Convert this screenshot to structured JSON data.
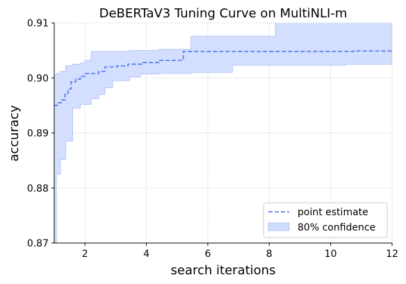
{
  "chart_data": {
    "type": "line",
    "title": "DeBERTaV3 Tuning Curve on MultiNLI-m",
    "xlabel": "search iterations",
    "ylabel": "accuracy",
    "xlim": [
      1,
      12
    ],
    "ylim": [
      0.87,
      0.91
    ],
    "xticks": [
      2,
      4,
      6,
      8,
      10,
      12
    ],
    "yticks": [
      0.87,
      0.88,
      0.89,
      0.9,
      0.91
    ],
    "xtick_labels": [
      "2",
      "4",
      "6",
      "8",
      "10",
      "12"
    ],
    "ytick_labels": [
      "0.87",
      "0.88",
      "0.89",
      "0.90",
      "0.91"
    ],
    "grid": true,
    "legend_position": "lower-right",
    "series": [
      {
        "name": "point estimate",
        "style": "dashed",
        "color": "#5b84e8",
        "x": [
          1.0,
          1.1,
          1.25,
          1.35,
          1.45,
          1.55,
          1.7,
          1.85,
          2.0,
          2.45,
          2.65,
          3.05,
          3.4,
          3.9,
          4.4,
          5.2,
          10.75,
          12.0
        ],
        "y": [
          0.895,
          0.8955,
          0.896,
          0.897,
          0.898,
          0.8993,
          0.8998,
          0.9003,
          0.9008,
          0.9012,
          0.902,
          0.9022,
          0.9025,
          0.9028,
          0.9032,
          0.9048,
          0.9049,
          0.9049
        ]
      },
      {
        "name": "80% confidence",
        "style": "band",
        "color": "#cfdcff",
        "x": [
          1.0,
          1.07,
          1.2,
          1.37,
          1.6,
          1.85,
          2.0,
          2.2,
          2.45,
          2.65,
          2.9,
          3.45,
          3.8,
          4.1,
          4.4,
          5.45,
          6.8,
          8.2,
          10.5,
          12.0
        ],
        "lower": [
          0.87,
          0.8825,
          0.8852,
          0.8885,
          0.8945,
          0.8952,
          0.8952,
          0.8962,
          0.897,
          0.8982,
          0.8995,
          0.9002,
          0.9007,
          0.9007,
          0.9008,
          0.901,
          0.9023,
          0.9023,
          0.9025,
          0.9025
        ],
        "upper": [
          0.9005,
          0.9008,
          0.9012,
          0.9022,
          0.9025,
          0.9027,
          0.9032,
          0.9048,
          0.9048,
          0.9048,
          0.9048,
          0.905,
          0.905,
          0.905,
          0.9052,
          0.9076,
          0.9076,
          0.9102,
          0.9102,
          0.9102
        ]
      }
    ]
  }
}
